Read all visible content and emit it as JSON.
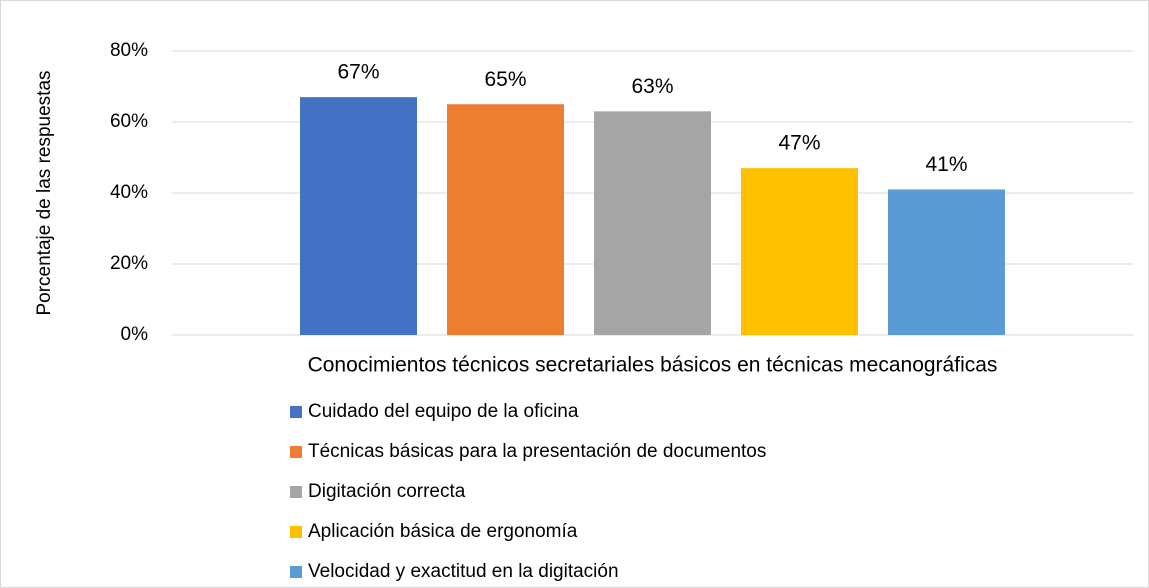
{
  "chart_data": {
    "type": "bar",
    "ylabel": "Porcentaje de las respuestas",
    "categories": [
      "Conocimientos técnicos secretariales básicos en técnicas mecanográficas"
    ],
    "series": [
      {
        "name": "Cuidado del equipo de la oficina",
        "color": "#4472c4",
        "values": [
          67
        ],
        "value_labels": [
          "67%"
        ]
      },
      {
        "name": "Técnicas básicas para la presentación de documentos",
        "color": "#ed7d31",
        "values": [
          65
        ],
        "value_labels": [
          "65%"
        ]
      },
      {
        "name": "Digitación correcta",
        "color": "#a5a5a5",
        "values": [
          63
        ],
        "value_labels": [
          "63%"
        ]
      },
      {
        "name": "Aplicación básica de ergonomía",
        "color": "#ffc000",
        "values": [
          47
        ],
        "value_labels": [
          "47%"
        ]
      },
      {
        "name": "Velocidad y exactitud en la digitación",
        "color": "#5b9bd5",
        "values": [
          41
        ],
        "value_labels": [
          "41%"
        ]
      }
    ],
    "ylim": [
      0,
      80
    ],
    "yticks": [
      {
        "value": 0,
        "label": "0%"
      },
      {
        "value": 20,
        "label": "20%"
      },
      {
        "value": 40,
        "label": "40%"
      },
      {
        "value": 60,
        "label": "60%"
      },
      {
        "value": 80,
        "label": "80%"
      }
    ],
    "grid": true,
    "legend": "bottom"
  }
}
